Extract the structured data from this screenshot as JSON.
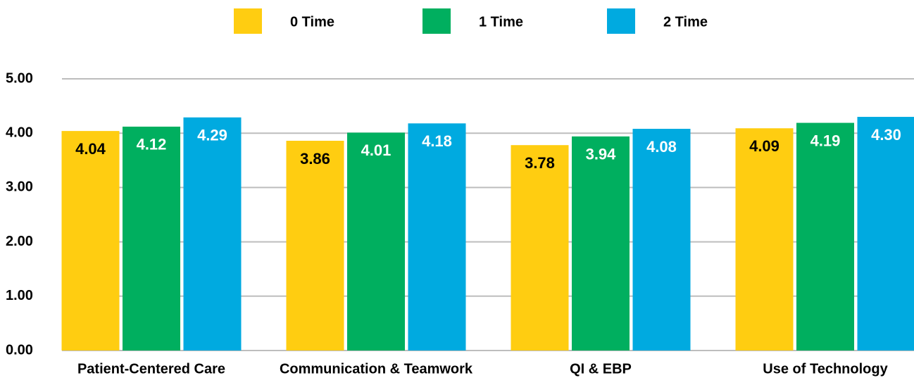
{
  "chart_data": {
    "type": "bar",
    "categories": [
      "Patient-Centered Care",
      "Communication & Teamwork",
      "QI & EBP",
      "Use of Technology"
    ],
    "series": [
      {
        "name": "0 Time",
        "color": "#FFCD11",
        "label_color": "#000000",
        "values": [
          4.04,
          3.86,
          3.78,
          4.09
        ],
        "value_labels": [
          "4.04",
          "3.86",
          "3.78",
          "4.09"
        ]
      },
      {
        "name": "1 Time",
        "color": "#00AF5F",
        "label_color": "#ffffff",
        "values": [
          4.12,
          4.01,
          3.94,
          4.19
        ],
        "value_labels": [
          "4.12",
          "4.01",
          "3.94",
          "4.19"
        ]
      },
      {
        "name": "2 Time",
        "color": "#00AAE0",
        "label_color": "#ffffff",
        "values": [
          4.29,
          4.18,
          4.08,
          4.3
        ],
        "value_labels": [
          "4.29",
          "4.18",
          "4.08",
          "4.30"
        ]
      }
    ],
    "ylim": [
      0,
      5
    ],
    "yticks": [
      {
        "value": 0,
        "label": "0.00"
      },
      {
        "value": 1,
        "label": "1.00"
      },
      {
        "value": 2,
        "label": "2.00"
      },
      {
        "value": 3,
        "label": "3.00"
      },
      {
        "value": 4,
        "label": "4.00"
      },
      {
        "value": 5,
        "label": "5.00"
      }
    ],
    "grid": true,
    "legend": "top"
  }
}
